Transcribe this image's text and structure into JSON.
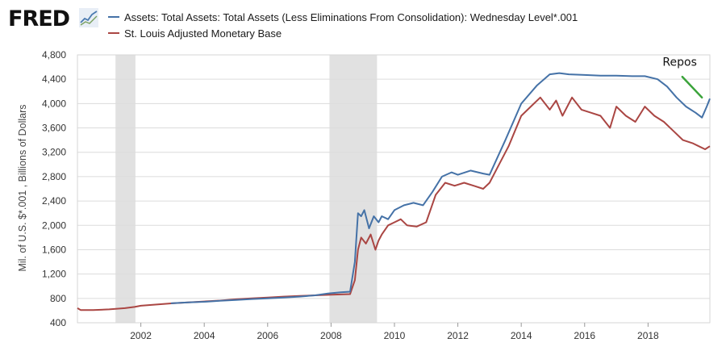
{
  "header": {
    "logo_text": "FRED",
    "logo_icon": "line-chart-icon"
  },
  "chart_data": {
    "type": "line",
    "title": "",
    "xlabel": "",
    "ylabel": "Mil. of U.S. $*.001 , Billions of Dollars",
    "xlim": [
      2000.0,
      2019.95
    ],
    "ylim": [
      400,
      4800
    ],
    "x_ticks": [
      "2002",
      "2004",
      "2006",
      "2008",
      "2010",
      "2012",
      "2014",
      "2016",
      "2018"
    ],
    "x_tick_values": [
      2002,
      2004,
      2006,
      2008,
      2010,
      2012,
      2014,
      2016,
      2018
    ],
    "y_ticks": [
      "4,800",
      "4,400",
      "4,000",
      "3,600",
      "3,200",
      "2,800",
      "2,400",
      "2,000",
      "1,600",
      "1,200",
      "800",
      "400"
    ],
    "y_tick_values": [
      4800,
      4400,
      4000,
      3600,
      3200,
      2800,
      2400,
      2000,
      1600,
      1200,
      800,
      400
    ],
    "grid": true,
    "legend_position": "top-left",
    "recessions": [
      {
        "start": 2001.2,
        "end": 2001.83
      },
      {
        "start": 2007.95,
        "end": 2009.45
      }
    ],
    "annotations": [
      {
        "text": "Repos",
        "x": 2019.0,
        "y": 4620
      }
    ],
    "annotation_arrow": {
      "x1": 2019.08,
      "y1": 4440,
      "x2": 2019.7,
      "y2": 4100,
      "color": "#3aa33a"
    },
    "series": [
      {
        "name": "Assets: Total Assets: Total Assets (Less Eliminations From Consolidation): Wednesday Level*.001",
        "color": "#4572a7",
        "x": [
          2002.95,
          2003.5,
          2004.0,
          2004.5,
          2005.0,
          2005.5,
          2006.0,
          2006.5,
          2007.0,
          2007.5,
          2007.9,
          2008.3,
          2008.6,
          2008.75,
          2008.85,
          2008.95,
          2009.05,
          2009.2,
          2009.35,
          2009.5,
          2009.6,
          2009.8,
          2010.0,
          2010.3,
          2010.6,
          2010.9,
          2011.2,
          2011.5,
          2011.8,
          2012.0,
          2012.4,
          2012.8,
          2013.0,
          2013.5,
          2014.0,
          2014.5,
          2014.9,
          2015.2,
          2015.5,
          2016.0,
          2016.5,
          2017.0,
          2017.5,
          2017.9,
          2018.3,
          2018.6,
          2018.9,
          2019.2,
          2019.5,
          2019.7,
          2019.85,
          2019.95
        ],
        "y": [
          720,
          735,
          745,
          760,
          775,
          790,
          800,
          815,
          830,
          850,
          880,
          900,
          910,
          1400,
          2200,
          2150,
          2250,
          1950,
          2150,
          2050,
          2150,
          2100,
          2250,
          2330,
          2370,
          2330,
          2550,
          2800,
          2870,
          2830,
          2900,
          2850,
          2830,
          3400,
          4000,
          4300,
          4480,
          4500,
          4480,
          4470,
          4460,
          4460,
          4450,
          4450,
          4400,
          4280,
          4100,
          3950,
          3850,
          3770,
          3950,
          4080
        ]
      },
      {
        "name": "St. Louis Adjusted Monetary Base",
        "color": "#aa4643",
        "x": [
          2000.0,
          2000.1,
          2000.5,
          2001.0,
          2001.5,
          2001.8,
          2002.0,
          2002.5,
          2003.0,
          2003.5,
          2004.0,
          2004.5,
          2005.0,
          2005.5,
          2006.0,
          2006.5,
          2007.0,
          2007.5,
          2008.0,
          2008.3,
          2008.6,
          2008.75,
          2008.85,
          2008.95,
          2009.1,
          2009.25,
          2009.4,
          2009.5,
          2009.6,
          2009.8,
          2010.0,
          2010.2,
          2010.4,
          2010.7,
          2011.0,
          2011.3,
          2011.6,
          2011.9,
          2012.2,
          2012.5,
          2012.8,
          2013.0,
          2013.3,
          2013.6,
          2014.0,
          2014.3,
          2014.6,
          2014.9,
          2015.1,
          2015.3,
          2015.6,
          2015.9,
          2016.2,
          2016.5,
          2016.8,
          2017.0,
          2017.3,
          2017.6,
          2017.9,
          2018.2,
          2018.5,
          2018.8,
          2019.1,
          2019.4,
          2019.6,
          2019.8,
          2019.95
        ],
        "y": [
          640,
          610,
          610,
          620,
          640,
          660,
          680,
          700,
          720,
          735,
          750,
          765,
          785,
          800,
          815,
          830,
          840,
          850,
          860,
          865,
          870,
          1100,
          1600,
          1800,
          1700,
          1850,
          1600,
          1750,
          1850,
          2000,
          2050,
          2100,
          2000,
          1980,
          2050,
          2500,
          2700,
          2650,
          2700,
          2650,
          2600,
          2700,
          3000,
          3300,
          3800,
          3950,
          4100,
          3900,
          4050,
          3800,
          4100,
          3900,
          3850,
          3800,
          3600,
          3950,
          3800,
          3700,
          3950,
          3800,
          3700,
          3550,
          3400,
          3350,
          3300,
          3250,
          3300
        ]
      }
    ]
  }
}
